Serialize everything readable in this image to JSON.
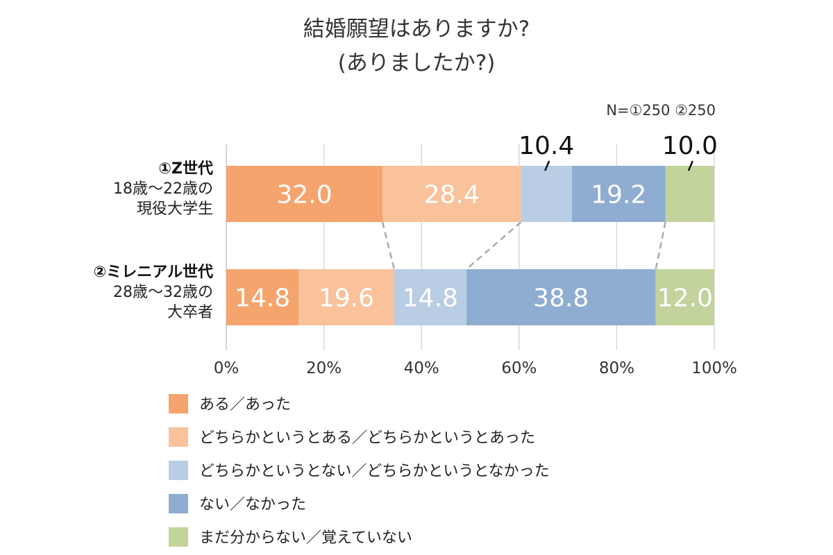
{
  "chart_data": {
    "type": "bar",
    "orientation": "horizontal-stacked-100",
    "title_lines": [
      "結婚願望はありますか?",
      "(ありましたか?)"
    ],
    "note": "N=①250 ②250",
    "categories": [
      {
        "lines": [
          "①Z世代",
          "18歳〜22歳の",
          "現役大学生"
        ]
      },
      {
        "lines": [
          "②ミレニアル世代",
          "28歳〜32歳の",
          "大卒者"
        ]
      }
    ],
    "series": [
      {
        "name": "ある／あった",
        "color": "#f5a46d",
        "values": [
          32.0,
          14.8
        ],
        "labels": [
          "32.0",
          "14.8"
        ]
      },
      {
        "name": "どちらかというとある／どちらかというとあった",
        "color": "#f9c29b",
        "values": [
          28.4,
          19.6
        ],
        "labels": [
          "28.4",
          "19.6"
        ]
      },
      {
        "name": "どちらかというとない／どちらかというとなかった",
        "color": "#b9cde4",
        "values": [
          10.4,
          14.8
        ],
        "labels": [
          "10.4",
          "14.8"
        ]
      },
      {
        "name": "ない／なかった",
        "color": "#8fadd1",
        "values": [
          19.2,
          38.8
        ],
        "labels": [
          "19.2",
          "38.8"
        ]
      },
      {
        "name": "まだ分からない／覚えていない",
        "color": "#c3d39c",
        "values": [
          10.0,
          12.0
        ],
        "labels": [
          "10.0",
          "12.0"
        ]
      }
    ],
    "outside_labels": [
      {
        "category": 0,
        "series": 2
      },
      {
        "category": 0,
        "series": 4
      }
    ],
    "connector_lines": [
      [
        0,
        1
      ],
      [
        1,
        2
      ],
      [
        3,
        3
      ]
    ],
    "xaxis": {
      "ticks": [
        "0%",
        "20%",
        "40%",
        "60%",
        "80%",
        "100%"
      ],
      "range": [
        0,
        100
      ]
    },
    "grid": true,
    "legend_position": "bottom"
  }
}
